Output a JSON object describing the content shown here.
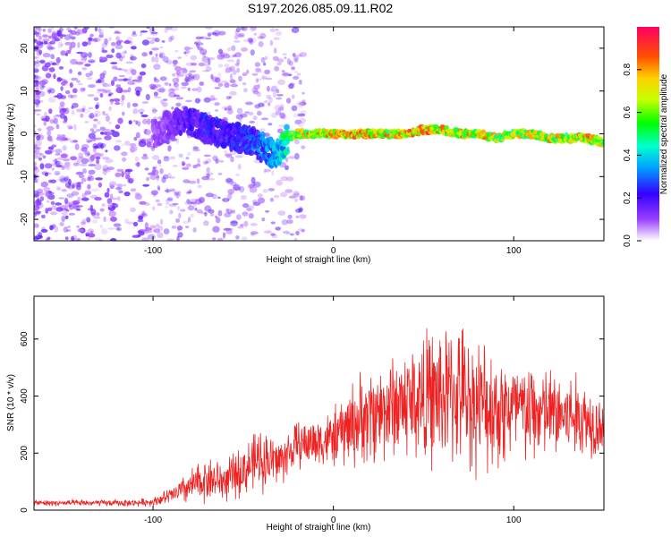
{
  "title": "S197.2026.085.09.11.R02",
  "chart_data": [
    {
      "type": "heatmap",
      "name": "spectrogram",
      "xlabel": "Height of straight line (km)",
      "ylabel": "Frequency (Hz)",
      "xlim": [
        -166,
        150
      ],
      "ylim": [
        -25,
        25
      ],
      "xticks": [
        -100,
        0,
        100
      ],
      "yticks": [
        -20,
        -10,
        0,
        10,
        20
      ],
      "colorbar": {
        "label": "Normalized spectral amplitude",
        "range": [
          0,
          1
        ],
        "ticks": [
          "0.0",
          "0.2",
          "0.4",
          "0.6",
          "0.8"
        ],
        "colors": [
          "#ffffff",
          "#7700ff",
          "#0000ff",
          "#00ffff",
          "#00ff00",
          "#ffff00",
          "#ff8800",
          "#ff0000",
          "#ff0077"
        ]
      },
      "ridge": {
        "x": [
          -166,
          -120,
          -100,
          -90,
          -80,
          -70,
          -60,
          -50,
          -40,
          -32,
          -25,
          -20,
          -10,
          0,
          10,
          20,
          30,
          40,
          50,
          60,
          70,
          80,
          90,
          100,
          110,
          120,
          130,
          140,
          150
        ],
        "freq": [
          0,
          0,
          0,
          2,
          3,
          1,
          0,
          -1,
          -3,
          -5,
          -1,
          0,
          0,
          0,
          0,
          0,
          0,
          0,
          1,
          1,
          0,
          0,
          -1,
          0,
          0,
          -1,
          -1,
          -1,
          -2
        ],
        "amplitude": [
          0.05,
          0.08,
          0.12,
          0.15,
          0.22,
          0.25,
          0.25,
          0.28,
          0.35,
          0.4,
          0.6,
          0.75,
          0.85,
          0.9,
          0.92,
          0.95,
          0.85,
          0.9,
          0.95,
          0.9,
          0.85,
          0.85,
          0.8,
          0.75,
          0.8,
          0.85,
          0.8,
          0.85,
          0.8
        ]
      }
    },
    {
      "type": "line",
      "name": "snr",
      "xlabel": "Height of straight line (km)",
      "ylabel": "SNR (10 * v/v)",
      "xlim": [
        -166,
        150
      ],
      "ylim": [
        0,
        750
      ],
      "xticks": [
        -100,
        0,
        100
      ],
      "yticks": [
        0,
        200,
        400,
        600
      ],
      "color": "#ee2020",
      "envelope": {
        "x": [
          -166,
          -110,
          -100,
          -90,
          -80,
          -70,
          -60,
          -50,
          -40,
          -30,
          -20,
          -10,
          0,
          10,
          20,
          30,
          40,
          50,
          60,
          70,
          80,
          90,
          100,
          110,
          120,
          130,
          140,
          150
        ],
        "mean": [
          25,
          25,
          30,
          50,
          80,
          110,
          100,
          140,
          180,
          170,
          230,
          240,
          250,
          300,
          330,
          360,
          380,
          390,
          400,
          410,
          370,
          360,
          350,
          340,
          340,
          330,
          320,
          300
        ],
        "spread": [
          10,
          12,
          15,
          30,
          60,
          80,
          70,
          90,
          110,
          90,
          80,
          90,
          100,
          150,
          170,
          180,
          200,
          230,
          250,
          240,
          230,
          220,
          190,
          180,
          160,
          160,
          140,
          100
        ]
      }
    }
  ]
}
